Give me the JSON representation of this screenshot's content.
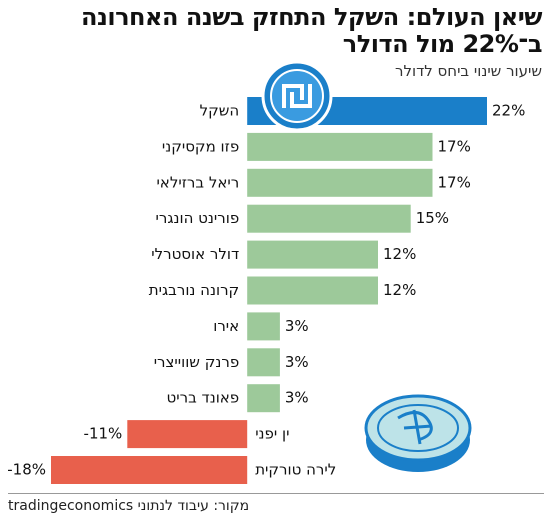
{
  "chart_data": {
    "type": "bar",
    "orientation": "horizontal",
    "title": "שיאן העולם: השקל התחזק בשנה האחרונה",
    "title_line2": "ב־22% מול הדולר",
    "subtitle": "שיעור שינוי ביחס לדולר",
    "source": "מקור: עיבוד לנתוני tradingeconomics",
    "categories": [
      "השקל",
      "פזו מקסיקני",
      "ריאל ברזילאי",
      "פורינט הונגרי",
      "דולר אוסטרלי",
      "קרונה נורבגית",
      "אירו",
      "פרנק שווייצרי",
      "פאונד בריט",
      "ין יפני",
      "לירה טורקית"
    ],
    "values": [
      22,
      17,
      17,
      15,
      12,
      12,
      3,
      3,
      3,
      -11,
      -18
    ],
    "value_labels": [
      "22%",
      "17%",
      "17%",
      "15%",
      "12%",
      "12%",
      "3%",
      "3%",
      "3%",
      "-11%",
      "-18%"
    ],
    "colors": [
      "#1a7fc9",
      "#9dc99a",
      "#9dc99a",
      "#9dc99a",
      "#9dc99a",
      "#9dc99a",
      "#9dc99a",
      "#9dc99a",
      "#9dc99a",
      "#e8604c",
      "#e8604c"
    ],
    "xlim": [
      -18,
      22
    ]
  }
}
